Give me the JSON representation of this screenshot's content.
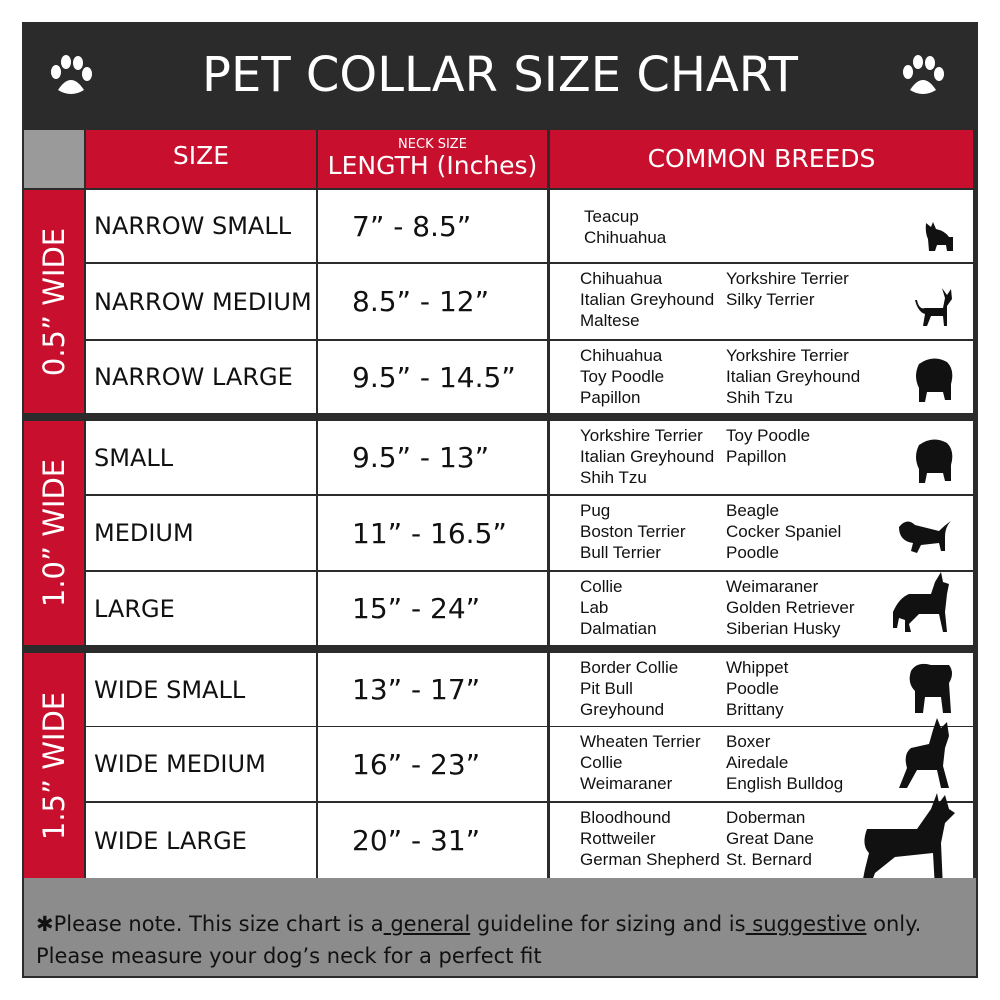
{
  "title": "PET COLLAR SIZE CHART",
  "icons": [
    "paw-print-icon",
    "paw-print-icon"
  ],
  "colors": {
    "header_red": "#c8102e",
    "frame": "#2b2b2b",
    "footer": "#8c8c8c"
  },
  "headers": {
    "size": "SIZE",
    "neck_small": "NECK SIZE",
    "length": "LENGTH (Inches)",
    "breeds": "COMMON BREEDS"
  },
  "groups": [
    "0.5” WIDE",
    "1.0” WIDE",
    "1.5” WIDE"
  ],
  "rows": [
    {
      "size": "NARROW SMALL",
      "length": "7” - 8.5”",
      "col1": [
        "Teacup",
        "Chihuahua"
      ],
      "col2": [],
      "icon": "yorkie-silhouette-icon"
    },
    {
      "size": "NARROW MEDIUM",
      "length": "8.5” - 12”",
      "col1": [
        "Chihuahua",
        "Italian Greyhound",
        "Maltese"
      ],
      "col2": [
        "Yorkshire Terrier",
        "Silky Terrier"
      ],
      "icon": "chihuahua-silhouette-icon"
    },
    {
      "size": "NARROW LARGE",
      "length": "9.5” - 14.5”",
      "col1": [
        "Chihuahua",
        "Toy Poodle",
        "Papillon"
      ],
      "col2": [
        "Yorkshire Terrier",
        "Italian Greyhound",
        "Shih Tzu"
      ],
      "icon": "pomeranian-silhouette-icon"
    },
    {
      "size": "SMALL",
      "length": "9.5” - 13”",
      "col1": [
        "Yorkshire Terrier",
        "Italian Greyhound",
        "Shih Tzu"
      ],
      "col2": [
        "Toy Poodle",
        "Papillon"
      ],
      "icon": "pomeranian-silhouette-icon"
    },
    {
      "size": "MEDIUM",
      "length": "11” - 16.5”",
      "col1": [
        "Pug",
        "Boston Terrier",
        "Bull Terrier"
      ],
      "col2": [
        "Beagle",
        "Cocker Spaniel",
        "Poodle"
      ],
      "icon": "spaniel-silhouette-icon"
    },
    {
      "size": "LARGE",
      "length": "15” - 24”",
      "col1": [
        "Collie",
        "Lab",
        "Dalmatian"
      ],
      "col2": [
        "Weimaraner",
        "Golden Retriever",
        "Siberian Husky"
      ],
      "icon": "shepherd-silhouette-icon"
    },
    {
      "size": "WIDE SMALL",
      "length": "13” - 17”",
      "col1": [
        "Border Collie",
        "Pit Bull",
        "Greyhound"
      ],
      "col2": [
        "Whippet",
        "Poodle",
        "Brittany"
      ],
      "icon": "bulldog-silhouette-icon"
    },
    {
      "size": "WIDE MEDIUM",
      "length": "16” - 23”",
      "col1": [
        "Wheaten Terrier",
        "Collie",
        "Weimaraner"
      ],
      "col2": [
        "Boxer",
        "Airedale",
        "English Bulldog"
      ],
      "icon": "pitbull-silhouette-icon"
    },
    {
      "size": "WIDE LARGE",
      "length": "20” - 31”",
      "col1": [
        "Bloodhound",
        "Rottweiler",
        "German Shepherd"
      ],
      "col2": [
        "Doberman",
        "Great Dane",
        "St. Bernard"
      ],
      "icon": "doberman-silhouette-icon"
    }
  ],
  "footer": {
    "p1": "✱Please note. This size chart is a",
    "u1": " general",
    "p2": " guideline for sizing and is",
    "u2": " suggestive",
    "p3": " only.",
    "line2": "Please measure your dog’s neck for a perfect fit"
  }
}
